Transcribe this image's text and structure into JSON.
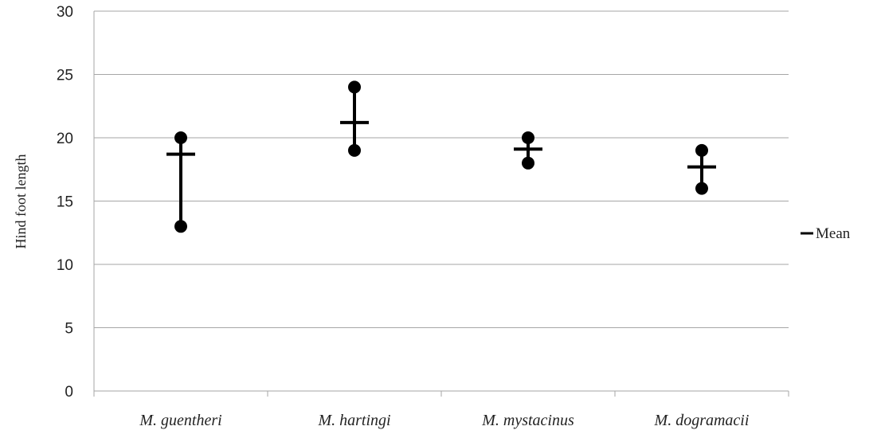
{
  "chart_data": {
    "type": "range",
    "title": "",
    "xlabel": "",
    "ylabel": "Hind foot length",
    "ylim": [
      0,
      30
    ],
    "yticks": [
      0,
      5,
      10,
      15,
      20,
      25,
      30
    ],
    "grid": true,
    "legend_position": "right",
    "legend": {
      "label": "Mean"
    },
    "categories": [
      "M. guentheri",
      "M. hartingi",
      "M. mystacinus",
      "M. dogramacii"
    ],
    "series": [
      {
        "name": "Max",
        "values": [
          20,
          24,
          20,
          19
        ]
      },
      {
        "name": "Min",
        "values": [
          13,
          19,
          18,
          16
        ]
      },
      {
        "name": "Mean",
        "values": [
          18.7,
          21.2,
          19.1,
          17.7
        ]
      }
    ],
    "colors": {
      "marks": "#000000",
      "grid": "#a6a6a6",
      "axis": "#a6a6a6",
      "mean_marker": "#000000"
    }
  }
}
